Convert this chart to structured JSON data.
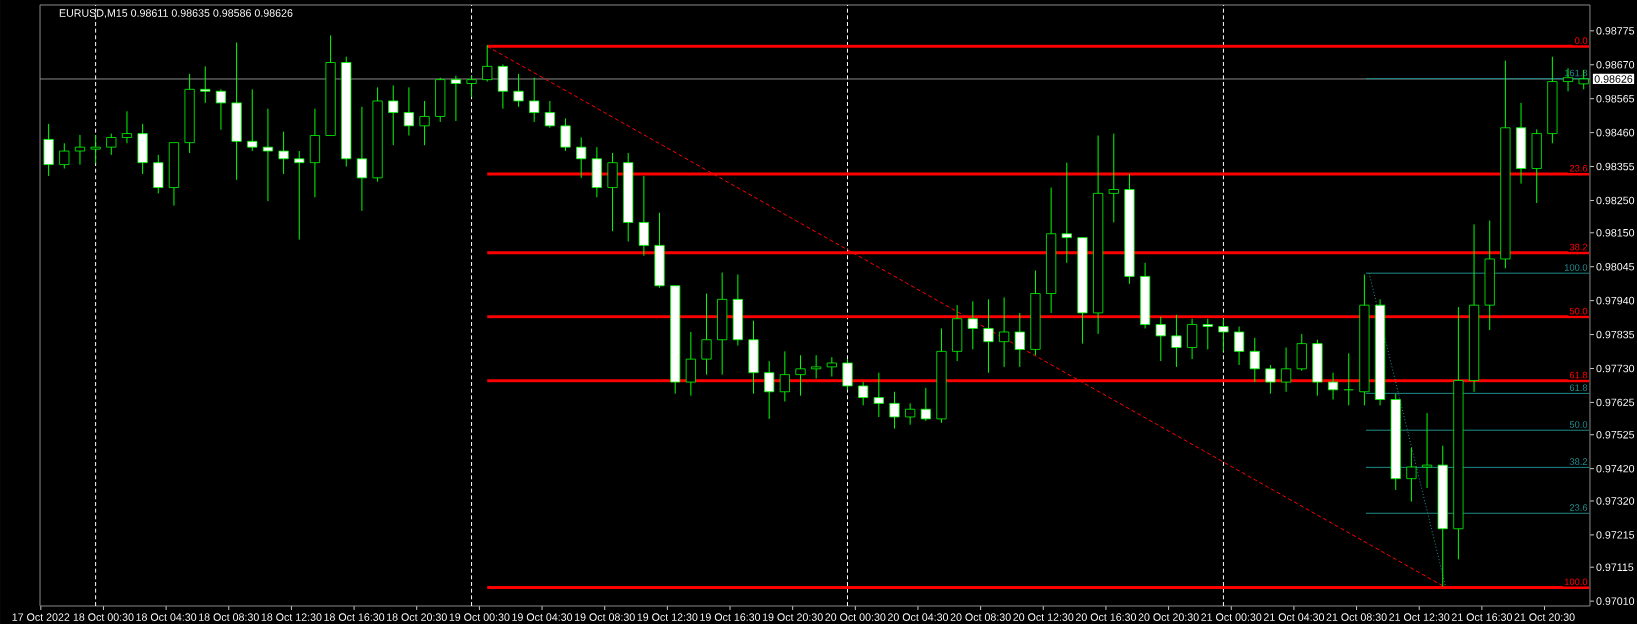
{
  "chart_data": {
    "type": "candlestick",
    "title": "EURUSD,M15  0.98611 0.98635 0.98586 0.98626",
    "color": "#00ff00",
    "x": [
      "2022-10-17T21:00",
      "2022-10-17T22:00",
      "2022-10-17T23:00",
      "2022-10-18T00:00",
      "2022-10-18T01:00",
      "2022-10-18T02:00",
      "2022-10-18T03:00",
      "2022-10-18T04:00",
      "2022-10-18T05:00",
      "2022-10-18T06:00",
      "2022-10-18T07:00",
      "2022-10-18T08:00",
      "2022-10-18T09:00",
      "2022-10-18T10:00",
      "2022-10-18T11:00",
      "2022-10-18T12:00",
      "2022-10-18T13:00",
      "2022-10-18T14:00",
      "2022-10-18T15:00",
      "2022-10-18T16:00",
      "2022-10-18T17:00",
      "2022-10-18T18:00",
      "2022-10-18T19:00",
      "2022-10-18T20:00",
      "2022-10-18T21:00",
      "2022-10-18T22:00",
      "2022-10-18T23:00",
      "2022-10-19T00:00",
      "2022-10-19T01:00",
      "2022-10-19T02:00",
      "2022-10-19T03:00",
      "2022-10-19T04:00",
      "2022-10-19T05:00",
      "2022-10-19T06:00",
      "2022-10-19T07:00",
      "2022-10-19T08:00",
      "2022-10-19T09:00",
      "2022-10-19T10:00",
      "2022-10-19T11:00",
      "2022-10-19T12:00",
      "2022-10-19T13:00",
      "2022-10-19T14:00",
      "2022-10-19T15:00",
      "2022-10-19T16:00",
      "2022-10-19T17:00",
      "2022-10-19T18:00",
      "2022-10-19T19:00",
      "2022-10-19T20:00",
      "2022-10-19T21:00",
      "2022-10-19T22:00",
      "2022-10-19T23:00",
      "2022-10-20T00:00",
      "2022-10-20T01:00",
      "2022-10-20T02:00",
      "2022-10-20T03:00",
      "2022-10-20T04:00",
      "2022-10-20T05:00",
      "2022-10-20T06:00",
      "2022-10-20T07:00",
      "2022-10-20T08:00",
      "2022-10-20T09:00",
      "2022-10-20T10:00",
      "2022-10-20T11:00",
      "2022-10-20T12:00",
      "2022-10-20T13:00",
      "2022-10-20T14:00",
      "2022-10-20T15:00",
      "2022-10-20T16:00",
      "2022-10-20T17:00",
      "2022-10-20T18:00",
      "2022-10-20T19:00",
      "2022-10-20T20:00",
      "2022-10-20T21:00",
      "2022-10-20T22:00",
      "2022-10-20T23:00",
      "2022-10-21T00:00",
      "2022-10-21T01:00",
      "2022-10-21T02:00",
      "2022-10-21T03:00",
      "2022-10-21T04:00",
      "2022-10-21T05:00",
      "2022-10-21T06:00",
      "2022-10-21T07:00",
      "2022-10-21T08:00",
      "2022-10-21T09:00",
      "2022-10-21T10:00",
      "2022-10-21T11:00",
      "2022-10-21T12:00",
      "2022-10-21T13:00",
      "2022-10-21T14:00",
      "2022-10-21T15:00",
      "2022-10-21T16:00",
      "2022-10-21T17:00",
      "2022-10-21T18:00",
      "2022-10-21T19:00",
      "2022-10-21T20:00",
      "2022-10-21T21:00",
      "2022-10-21T22:00",
      "2022-10-21T23:00"
    ],
    "ohlc": [
      [
        0.98439,
        0.98487,
        0.98326,
        0.98361
      ],
      [
        0.98361,
        0.98427,
        0.98349,
        0.98403
      ],
      [
        0.98403,
        0.98453,
        0.98361,
        0.98415
      ],
      [
        0.98409,
        0.98453,
        0.98365,
        0.98415
      ],
      [
        0.98415,
        0.98457,
        0.98391,
        0.98445
      ],
      [
        0.98445,
        0.98526,
        0.98427,
        0.98457
      ],
      [
        0.98457,
        0.98487,
        0.98332,
        0.98367
      ],
      [
        0.98367,
        0.98391,
        0.98272,
        0.9829
      ],
      [
        0.9829,
        0.98429,
        0.98234,
        0.98429
      ],
      [
        0.98429,
        0.98642,
        0.98397,
        0.98594
      ],
      [
        0.98594,
        0.98665,
        0.98552,
        0.98588
      ],
      [
        0.98588,
        0.98594,
        0.98469,
        0.98552
      ],
      [
        0.98552,
        0.98739,
        0.98314,
        0.98433
      ],
      [
        0.98433,
        0.98594,
        0.98403,
        0.98415
      ],
      [
        0.98415,
        0.98534,
        0.98248,
        0.98403
      ],
      [
        0.98403,
        0.98463,
        0.98332,
        0.98379
      ],
      [
        0.98379,
        0.98403,
        0.98129,
        0.98367
      ],
      [
        0.98367,
        0.98534,
        0.9826,
        0.98451
      ],
      [
        0.98451,
        0.98761,
        0.98451,
        0.98677
      ],
      [
        0.98677,
        0.98695,
        0.98355,
        0.98379
      ],
      [
        0.98379,
        0.9854,
        0.98218,
        0.9832
      ],
      [
        0.9832,
        0.986,
        0.98308,
        0.98558
      ],
      [
        0.98558,
        0.98606,
        0.98421,
        0.98522
      ],
      [
        0.98522,
        0.986,
        0.98451,
        0.98481
      ],
      [
        0.98481,
        0.98558,
        0.98421,
        0.9851
      ],
      [
        0.9851,
        0.9863,
        0.98493,
        0.98624
      ],
      [
        0.98624,
        0.98636,
        0.98496,
        0.98612
      ],
      [
        0.98612,
        0.98636,
        0.9857,
        0.98624
      ],
      [
        0.98624,
        0.98731,
        0.98618,
        0.98665
      ],
      [
        0.98665,
        0.98671,
        0.98534,
        0.98588
      ],
      [
        0.98588,
        0.98642,
        0.9854,
        0.98558
      ],
      [
        0.98558,
        0.9863,
        0.98493,
        0.98522
      ],
      [
        0.98522,
        0.98558,
        0.98475,
        0.98481
      ],
      [
        0.98481,
        0.98504,
        0.98403,
        0.98415
      ],
      [
        0.98415,
        0.98445,
        0.9832,
        0.98379
      ],
      [
        0.98379,
        0.98415,
        0.9826,
        0.9829
      ],
      [
        0.9829,
        0.98397,
        0.98155,
        0.98367
      ],
      [
        0.98367,
        0.98397,
        0.98123,
        0.98182
      ],
      [
        0.98182,
        0.98326,
        0.98079,
        0.98111
      ],
      [
        0.98111,
        0.98212,
        0.9798,
        0.97986
      ],
      [
        0.97986,
        0.97986,
        0.97652,
        0.97688
      ],
      [
        0.97688,
        0.97843,
        0.97646,
        0.97759
      ],
      [
        0.97759,
        0.97962,
        0.97711,
        0.97819
      ],
      [
        0.97819,
        0.98027,
        0.97711,
        0.97944
      ],
      [
        0.97944,
        0.98021,
        0.97801,
        0.97819
      ],
      [
        0.97819,
        0.97878,
        0.97652,
        0.97717
      ],
      [
        0.97717,
        0.97753,
        0.97574,
        0.97658
      ],
      [
        0.97658,
        0.97783,
        0.97628,
        0.97711
      ],
      [
        0.97711,
        0.97771,
        0.97646,
        0.97729
      ],
      [
        0.97729,
        0.97771,
        0.97699,
        0.97735
      ],
      [
        0.97735,
        0.97765,
        0.97705,
        0.97747
      ],
      [
        0.97747,
        0.97759,
        0.97664,
        0.97676
      ],
      [
        0.97676,
        0.97688,
        0.97616,
        0.9764
      ],
      [
        0.9764,
        0.97717,
        0.9758,
        0.97622
      ],
      [
        0.97622,
        0.97658,
        0.97544,
        0.9758
      ],
      [
        0.9758,
        0.97622,
        0.97556,
        0.97604
      ],
      [
        0.97604,
        0.9767,
        0.97568,
        0.97574
      ],
      [
        0.97574,
        0.97854,
        0.97562,
        0.97783
      ],
      [
        0.97783,
        0.97926,
        0.97753,
        0.97884
      ],
      [
        0.97884,
        0.97938,
        0.97789,
        0.97854
      ],
      [
        0.97854,
        0.97944,
        0.97717,
        0.97813
      ],
      [
        0.97813,
        0.9795,
        0.97735,
        0.97843
      ],
      [
        0.97843,
        0.97902,
        0.97735,
        0.97789
      ],
      [
        0.97789,
        0.98033,
        0.97771,
        0.97962
      ],
      [
        0.97962,
        0.9829,
        0.97902,
        0.98147
      ],
      [
        0.98147,
        0.98367,
        0.98057,
        0.98135
      ],
      [
        0.98135,
        0.98135,
        0.97807,
        0.97902
      ],
      [
        0.97902,
        0.98451,
        0.97837,
        0.98272
      ],
      [
        0.98272,
        0.98457,
        0.98182,
        0.98284
      ],
      [
        0.98284,
        0.98332,
        0.97992,
        0.98015
      ],
      [
        0.98015,
        0.98057,
        0.97854,
        0.97866
      ],
      [
        0.97866,
        0.9789,
        0.97753,
        0.97831
      ],
      [
        0.97831,
        0.97896,
        0.97735,
        0.97795
      ],
      [
        0.97795,
        0.97884,
        0.97759,
        0.97866
      ],
      [
        0.97866,
        0.97884,
        0.97789,
        0.9786
      ],
      [
        0.9786,
        0.97884,
        0.97783,
        0.97843
      ],
      [
        0.97843,
        0.9786,
        0.97741,
        0.97783
      ],
      [
        0.97783,
        0.97825,
        0.97688,
        0.97729
      ],
      [
        0.97729,
        0.97741,
        0.97652,
        0.97688
      ],
      [
        0.97688,
        0.97795,
        0.97658,
        0.97729
      ],
      [
        0.97729,
        0.97837,
        0.97723,
        0.97807
      ],
      [
        0.97807,
        0.97819,
        0.97646,
        0.97688
      ],
      [
        0.97688,
        0.97717,
        0.97634,
        0.97664
      ],
      [
        0.97664,
        0.97777,
        0.97616,
        0.97664
      ],
      [
        0.97658,
        0.98021,
        0.97616,
        0.97926
      ],
      [
        0.97926,
        0.97944,
        0.97616,
        0.97634
      ],
      [
        0.97634,
        0.97652,
        0.97354,
        0.97389
      ],
      [
        0.97389,
        0.97485,
        0.97318,
        0.97425
      ],
      [
        0.97425,
        0.97592,
        0.9736,
        0.97431
      ],
      [
        0.97431,
        0.97491,
        0.97055,
        0.97234
      ],
      [
        0.97234,
        0.9792,
        0.97139,
        0.97693
      ],
      [
        0.97693,
        0.98176,
        0.97658,
        0.97926
      ],
      [
        0.97926,
        0.98188,
        0.97849,
        0.98069
      ],
      [
        0.98069,
        0.98683,
        0.9804,
        0.98475
      ],
      [
        0.98475,
        0.98552,
        0.98302,
        0.98349
      ],
      [
        0.98349,
        0.9847,
        0.98242,
        0.98457
      ],
      [
        0.98457,
        0.98695,
        0.98427,
        0.98618
      ],
      [
        0.98618,
        0.98659,
        0.98588,
        0.9863
      ],
      [
        0.98611,
        0.98654,
        0.98594,
        0.98626
      ]
    ],
    "series": [
      {
        "type": "line",
        "name": "0.0",
        "color": "#ff0000",
        "x": [
          "2022-10-19T01:00",
          "2022-10-21T23:21"
        ],
        "values": [
          0.98727,
          0.98727
        ]
      },
      {
        "type": "line",
        "name": "23.6",
        "color": "#ff0000",
        "x": [
          "2022-10-19T01:00",
          "2022-10-21T23:21"
        ],
        "values": [
          0.98332,
          0.98332
        ]
      },
      {
        "type": "line",
        "name": "38.2",
        "color": "#ff0000",
        "x": [
          "2022-10-19T01:00",
          "2022-10-21T23:21"
        ],
        "values": [
          0.98088,
          0.98088
        ]
      },
      {
        "type": "line",
        "name": "50.0",
        "color": "#ff0000",
        "x": [
          "2022-10-19T01:00",
          "2022-10-21T23:21"
        ],
        "values": [
          0.9789,
          0.9789
        ]
      },
      {
        "type": "line",
        "name": "61.8",
        "color": "#ff0000",
        "x": [
          "2022-10-19T01:00",
          "2022-10-21T23:21"
        ],
        "values": [
          0.97692,
          0.97692
        ]
      },
      {
        "type": "line",
        "name": "100.0",
        "color": "#ff0000",
        "x": [
          "2022-10-19T01:00",
          "2022-10-21T23:21"
        ],
        "values": [
          0.97052,
          0.97052
        ]
      },
      {
        "type": "line",
        "color": "#ff0000",
        "line_style": "dashed",
        "x": [
          "2022-10-19T01:00",
          "2022-10-21T14:12"
        ],
        "values": [
          0.98727,
          0.97052
        ]
      },
      {
        "type": "line",
        "name": "161.8",
        "color": "#208b8b",
        "x": [
          "2022-10-21T09:06",
          "2022-10-21T23:21"
        ],
        "values": [
          0.98627,
          0.98627
        ]
      },
      {
        "type": "line",
        "name": "100.0",
        "color": "#208b8b",
        "x": [
          "2022-10-21T09:06",
          "2022-10-21T23:21"
        ],
        "values": [
          0.98025,
          0.98025
        ]
      },
      {
        "type": "line",
        "name": "61.8",
        "color": "#208b8b",
        "x": [
          "2022-10-21T09:06",
          "2022-10-21T23:21"
        ],
        "values": [
          0.97653,
          0.97653
        ]
      },
      {
        "type": "line",
        "name": "50.0",
        "color": "#208b8b",
        "x": [
          "2022-10-21T09:06",
          "2022-10-21T23:21"
        ],
        "values": [
          0.97539,
          0.97539
        ]
      },
      {
        "type": "line",
        "name": "38.2",
        "color": "#208b8b",
        "x": [
          "2022-10-21T09:06",
          "2022-10-21T23:21"
        ],
        "values": [
          0.97424,
          0.97424
        ]
      },
      {
        "type": "line",
        "name": "23.6",
        "color": "#208b8b",
        "x": [
          "2022-10-21T09:06",
          "2022-10-21T23:21"
        ],
        "values": [
          0.97282,
          0.97282
        ]
      },
      {
        "type": "line",
        "color": "#208b8b",
        "line_style": "dotted",
        "x": [
          "2022-10-21T09:18",
          "2022-10-21T14:12"
        ],
        "values": [
          0.98025,
          0.97052
        ]
      }
    ],
    "ref_lines": [
      {
        "axis": "y",
        "value": 0.98626,
        "label": "0.98626",
        "color": "#8c8c8c"
      },
      {
        "axis": "x",
        "value": "2022-10-18T00:00",
        "color": "#ffffff",
        "line_style": "dashed"
      },
      {
        "axis": "x",
        "value": "2022-10-19T00:00",
        "color": "#ffffff",
        "line_style": "dashed"
      },
      {
        "axis": "x",
        "value": "2022-10-20T00:00",
        "color": "#ffffff",
        "line_style": "dashed"
      },
      {
        "axis": "x",
        "value": "2022-10-21T00:00",
        "color": "#ffffff",
        "line_style": "dashed"
      }
    ],
    "xlim": [
      "2022-10-17T20:27",
      "2022-10-21T23:24"
    ],
    "ylim": [
      0.96995,
      0.98855
    ],
    "xticks": [
      {
        "value": "2022-10-17T20:30",
        "label": "17 Oct 2022"
      },
      {
        "value": "2022-10-18T00:30",
        "label": "18 Oct 00:30"
      },
      {
        "value": "2022-10-18T04:30",
        "label": "18 Oct 04:30"
      },
      {
        "value": "2022-10-18T08:30",
        "label": "18 Oct 08:30"
      },
      {
        "value": "2022-10-18T12:30",
        "label": "18 Oct 12:30"
      },
      {
        "value": "2022-10-18T16:30",
        "label": "18 Oct 16:30"
      },
      {
        "value": "2022-10-18T20:30",
        "label": "18 Oct 20:30"
      },
      {
        "value": "2022-10-19T00:30",
        "label": "19 Oct 00:30"
      },
      {
        "value": "2022-10-19T04:30",
        "label": "19 Oct 04:30"
      },
      {
        "value": "2022-10-19T08:30",
        "label": "19 Oct 08:30"
      },
      {
        "value": "2022-10-19T12:30",
        "label": "19 Oct 12:30"
      },
      {
        "value": "2022-10-19T16:30",
        "label": "19 Oct 16:30"
      },
      {
        "value": "2022-10-19T20:30",
        "label": "19 Oct 20:30"
      },
      {
        "value": "2022-10-20T00:30",
        "label": "20 Oct 00:30"
      },
      {
        "value": "2022-10-20T04:30",
        "label": "20 Oct 04:30"
      },
      {
        "value": "2022-10-20T08:30",
        "label": "20 Oct 08:30"
      },
      {
        "value": "2022-10-20T12:30",
        "label": "20 Oct 12:30"
      },
      {
        "value": "2022-10-20T16:30",
        "label": "20 Oct 16:30"
      },
      {
        "value": "2022-10-20T20:30",
        "label": "20 Oct 20:30"
      },
      {
        "value": "2022-10-21T00:30",
        "label": "21 Oct 00:30"
      },
      {
        "value": "2022-10-21T04:30",
        "label": "21 Oct 04:30"
      },
      {
        "value": "2022-10-21T08:30",
        "label": "21 Oct 08:30"
      },
      {
        "value": "2022-10-21T12:30",
        "label": "21 Oct 12:30"
      },
      {
        "value": "2022-10-21T16:30",
        "label": "21 Oct 16:30"
      },
      {
        "value": "2022-10-21T20:30",
        "label": "21 Oct 20:30"
      }
    ],
    "yticks": [
      {
        "value": 0.98775,
        "label": "0.98775"
      },
      {
        "value": 0.9867,
        "label": "0.98670"
      },
      {
        "value": 0.98565,
        "label": "0.98565"
      },
      {
        "value": 0.9846,
        "label": "0.98460"
      },
      {
        "value": 0.98355,
        "label": "0.98355"
      },
      {
        "value": 0.9825,
        "label": "0.98250"
      },
      {
        "value": 0.9815,
        "label": "0.98150"
      },
      {
        "value": 0.98045,
        "label": "0.98045"
      },
      {
        "value": 0.9794,
        "label": "0.97940"
      },
      {
        "value": 0.97835,
        "label": "0.97835"
      },
      {
        "value": 0.9773,
        "label": "0.97730"
      },
      {
        "value": 0.97625,
        "label": "0.97625"
      },
      {
        "value": 0.97525,
        "label": "0.97525"
      },
      {
        "value": 0.9742,
        "label": "0.97420"
      },
      {
        "value": 0.9732,
        "label": "0.97320"
      },
      {
        "value": 0.97215,
        "label": "0.97215"
      },
      {
        "value": 0.97115,
        "label": "0.97115"
      },
      {
        "value": 0.9701,
        "label": "0.97010"
      }
    ]
  }
}
